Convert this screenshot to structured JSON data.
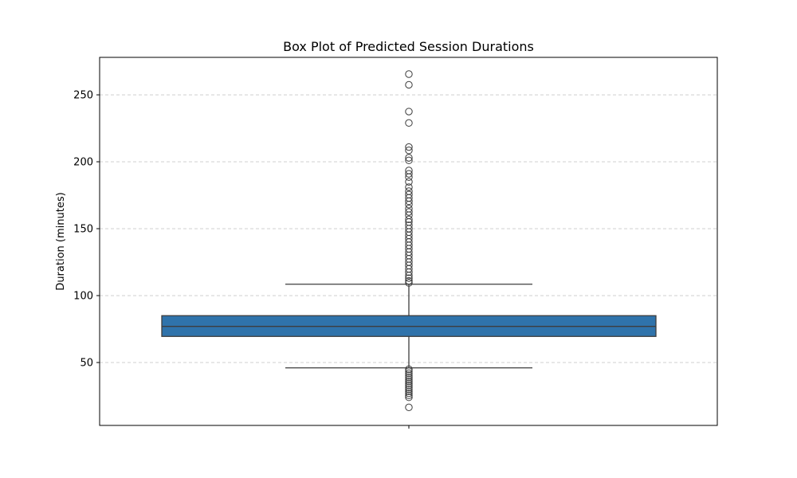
{
  "chart_data": {
    "type": "box",
    "title": "Box Plot of Predicted Session Durations",
    "xlabel": "",
    "ylabel": "Duration (minutes)",
    "ylim": [
      3,
      278
    ],
    "yticks": [
      50,
      100,
      150,
      200,
      250
    ],
    "grid": {
      "y": true,
      "x": false,
      "style": "dashed"
    },
    "box": {
      "q1": 69.5,
      "median": 77,
      "q3": 85,
      "whisker_low": 46,
      "whisker_high": 108.5,
      "color": "#2f73ab"
    },
    "outliers_high": [
      265.5,
      257.5,
      237.5,
      229,
      211,
      208.5,
      203,
      201,
      193.5,
      191,
      188.5,
      185,
      181,
      178,
      175.5,
      173,
      170.5,
      168,
      165,
      162.5,
      160,
      157,
      155,
      152.5,
      150,
      147.5,
      145,
      142.5,
      140,
      137.5,
      135,
      132.5,
      130,
      127.5,
      125,
      122.5,
      120,
      117.5,
      115,
      113,
      111,
      109.5
    ],
    "outliers_low": [
      45,
      43.5,
      42,
      40.5,
      39,
      37.5,
      36,
      34.5,
      33,
      31.5,
      30,
      28.5,
      27,
      25.5,
      24,
      16.5
    ]
  }
}
